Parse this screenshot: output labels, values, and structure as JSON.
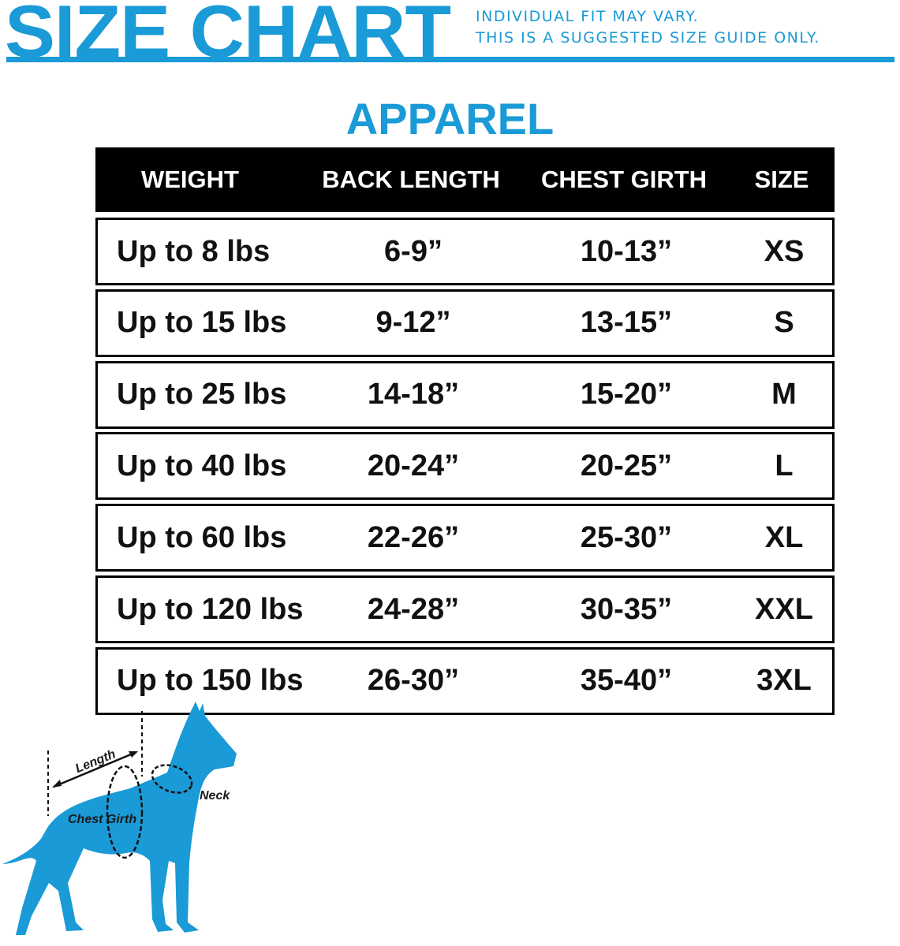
{
  "header": {
    "title": "SIZE CHART",
    "notes": [
      "INDIVIDUAL FIT MAY VARY.",
      "THIS IS A SUGGESTED SIZE GUIDE ONLY."
    ]
  },
  "section_title": "APPAREL",
  "table": {
    "columns": [
      "WEIGHT",
      "BACK LENGTH",
      "CHEST GIRTH",
      "SIZE"
    ],
    "rows": [
      [
        "Up to 8 lbs",
        "6-9”",
        "10-13”",
        "XS"
      ],
      [
        "Up to 15 lbs",
        "9-12”",
        "13-15”",
        "S"
      ],
      [
        "Up to 25 lbs",
        "14-18”",
        "15-20”",
        "M"
      ],
      [
        "Up to 40 lbs",
        "20-24”",
        "20-25”",
        "L"
      ],
      [
        "Up to 60 lbs",
        "22-26”",
        "25-30”",
        "XL"
      ],
      [
        "Up to 120 lbs",
        "24-28”",
        "30-35”",
        "XXL"
      ],
      [
        "Up to 150 lbs",
        "26-30”",
        "35-40”",
        "3XL"
      ]
    ]
  },
  "diagram": {
    "labels": {
      "length": "Length",
      "chest": "Chest Girth",
      "neck": "Neck"
    },
    "icon": "dog-silhouette-icon"
  },
  "colors": {
    "brand": "#1a9ad6",
    "header_bg": "#000000"
  }
}
